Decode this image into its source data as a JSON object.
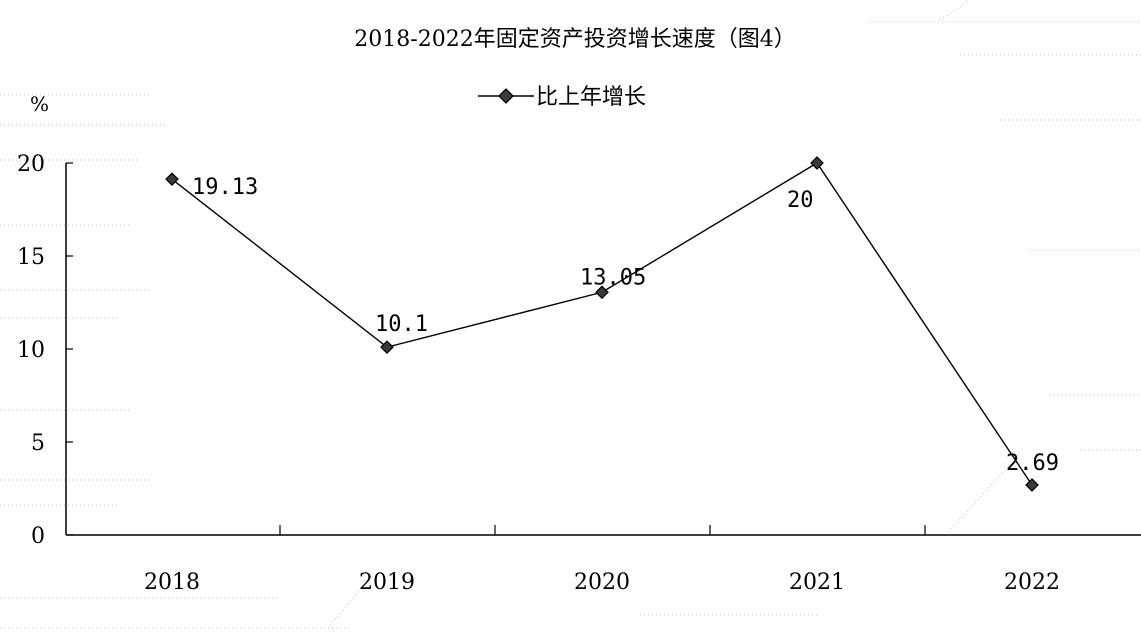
{
  "chart_data": {
    "type": "line",
    "title": "2018-2022年固定资产投资增长速度（图4）",
    "unit": "%",
    "categories": [
      "2018",
      "2019",
      "2020",
      "2021",
      "2022"
    ],
    "series": [
      {
        "name": "比上年增长",
        "values": [
          19.13,
          10.1,
          13.05,
          20,
          2.69
        ],
        "labels": [
          "19.13",
          "10.1",
          "13.05",
          "20",
          "2.69"
        ]
      }
    ],
    "ylim": [
      0,
      20
    ],
    "yticks": [
      0,
      5,
      10,
      15,
      20
    ],
    "grid": false,
    "legend": "top-center",
    "colors": {
      "line": "#000000",
      "marker": "#3a3a3a"
    }
  }
}
